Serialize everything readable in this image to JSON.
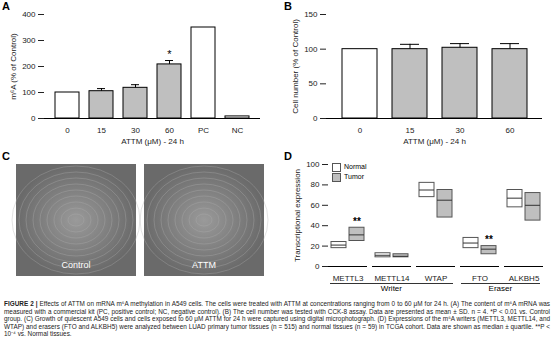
{
  "chart_data": [
    {
      "type": "bar",
      "title": "A",
      "categories": [
        "0",
        "15",
        "30",
        "60",
        "PC",
        "NC"
      ],
      "values": [
        100,
        105,
        118,
        208,
        350,
        8
      ],
      "errors": [
        null,
        10,
        12,
        15,
        null,
        null
      ],
      "colors": [
        "#ffffff",
        "#bfbfbf",
        "#bfbfbf",
        "#bfbfbf",
        "#ffffff",
        "#ffffff"
      ],
      "xlabel": "ATTM (μM) - 24 h",
      "ylabel": "m⁶A (% of Control)",
      "ylim": [
        0,
        400
      ],
      "yticks": [
        0,
        100,
        200,
        300,
        400
      ],
      "annotations": [
        {
          "category": "60",
          "text": "*"
        }
      ]
    },
    {
      "type": "bar",
      "title": "B",
      "categories": [
        "0",
        "15",
        "30",
        "60"
      ],
      "values": [
        100,
        100,
        102,
        100
      ],
      "errors": [
        null,
        7,
        6,
        8
      ],
      "colors": [
        "#ffffff",
        "#bfbfbf",
        "#bfbfbf",
        "#bfbfbf"
      ],
      "xlabel": "ATTM (μM) - 24 h",
      "ylabel": "Cell number (% of Control)",
      "ylim": [
        0,
        150
      ],
      "yticks": [
        0,
        50,
        100,
        150
      ]
    },
    {
      "type": "box",
      "title": "D",
      "categories": [
        "METTL3",
        "METTL14",
        "WTAP",
        "FTO",
        "ALKBH5"
      ],
      "series": [
        {
          "name": "Normal",
          "color": "#ffffff",
          "q1": [
            18,
            9,
            68,
            18,
            58
          ],
          "median": [
            21,
            11,
            75,
            23,
            67
          ],
          "q3": [
            24,
            13,
            82,
            28,
            75
          ]
        },
        {
          "name": "Tumor",
          "color": "#bfbfbf",
          "q1": [
            25,
            9,
            48,
            12,
            45
          ],
          "median": [
            31,
            10,
            65,
            17,
            60
          ],
          "q3": [
            38,
            12,
            75,
            20,
            72
          ]
        }
      ],
      "ylabel": "Transcriptional expression",
      "ylim": [
        0,
        100
      ],
      "yticks": [
        0,
        20,
        40,
        60,
        80,
        100
      ],
      "legend": "top-left",
      "groups": [
        {
          "label": "Writer",
          "categories": [
            "METTL3",
            "METTL14",
            "WTAP"
          ]
        },
        {
          "label": "Eraser",
          "categories": [
            "FTO",
            "ALKBH5"
          ]
        }
      ],
      "annotations": [
        {
          "category": "METTL3",
          "series": "Tumor",
          "text": "**"
        },
        {
          "category": "FTO",
          "series": "Tumor",
          "text": "**"
        }
      ]
    }
  ],
  "micrographs": {
    "title": "C",
    "labels": [
      "Control",
      "ATTM"
    ]
  },
  "caption": {
    "label": "FIGURE 2 |",
    "text": "Effects of ATTM on mRNA m⁶A methylation in A549 cells. The cells were treated with ATTM at concentrations ranging from 0 to 60 μM for 24 h. (A) The content of m⁶A mRNA was measured with a commercial kit (PC, positive control; NC, negative control). (B) The cell number was tested with CCK-8 assay. Data are presented as mean ± SD. n = 4. *P < 0.01 vs. Control group. (C) Growth of quiescent A549 cells and cells exposed to 60 μM ATTM for 24 h were captured using digital microphotograph. (D) Expressions of the m⁶A writers (METTL3, METTL14, and WTAP) and erasers (FTO and ALKBH5) were analyzed between LUAD primary tumor tissues (n = 515) and normal tissues (n = 59) in TCGA cohort. Data are shown as median ± quartile. **P < 10⁻⁴ vs. Normal tissues."
  }
}
